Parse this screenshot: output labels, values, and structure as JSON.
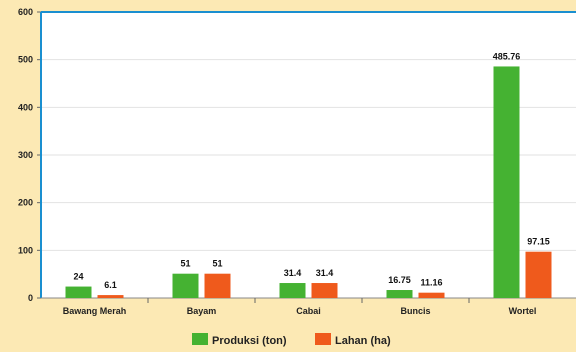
{
  "chart_data": {
    "type": "bar",
    "categories": [
      "Bawang Merah",
      "Bayam",
      "Cabai",
      "Buncis",
      "Wortel"
    ],
    "series": [
      {
        "name": "Produksi (ton)",
        "values": [
          24,
          51,
          31.4,
          16.75,
          485.76
        ],
        "labels": [
          "24",
          "51",
          "31.4",
          "16.75",
          "485.76"
        ]
      },
      {
        "name": "Lahan (ha)",
        "values": [
          6.1,
          51,
          31.4,
          11.16,
          97.15
        ],
        "labels": [
          "6.1",
          "51",
          "31.4",
          "11.16",
          "97.15"
        ]
      }
    ],
    "ylim": [
      0,
      600
    ],
    "yticks": [
      0,
      100,
      200,
      300,
      400,
      500,
      600
    ],
    "grid": true,
    "legend": "bottom-center",
    "colors": {
      "series": [
        "#45b232",
        "#ef5a1c"
      ],
      "axis": "#1a8fd0",
      "grid": "#e2e2e2",
      "plot_bg": "#ffffff"
    }
  }
}
